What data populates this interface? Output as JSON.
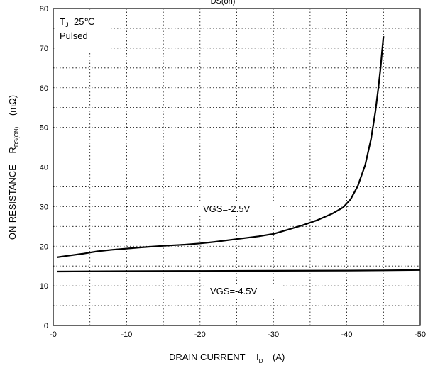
{
  "chart_data": {
    "type": "line",
    "title_fragment": "DS(on)",
    "xlabel": {
      "main": "DRAIN CURRENT",
      "symbol": "I",
      "subscript": "D",
      "unit": "(A)"
    },
    "ylabel": {
      "main": "ON-RESISTANCE",
      "symbol": "R",
      "subscript": "DS(ON)",
      "unit": "(mΩ)"
    },
    "xlim": [
      0,
      -50
    ],
    "ylim": [
      0,
      80
    ],
    "xticks": [
      0,
      -10,
      -20,
      -30,
      -40,
      -50
    ],
    "xtick_labels": [
      "-0",
      "-10",
      "-20",
      "-30",
      "-40",
      "-50"
    ],
    "yticks": [
      0,
      10,
      20,
      30,
      40,
      50,
      60,
      70,
      80
    ],
    "ytick_labels": [
      "0",
      "10",
      "20",
      "30",
      "40",
      "50",
      "60",
      "70",
      "80"
    ],
    "grid": true,
    "annotation_box": {
      "line1": "T",
      "line1_sub": "J",
      "line1_rest": "=25℃",
      "line2": "Pulsed"
    },
    "series": [
      {
        "name": "VGS=-2.5V",
        "x": [
          -0.5,
          -2,
          -4,
          -6,
          -8,
          -10,
          -12,
          -15,
          -18,
          -20,
          -22,
          -25,
          -28,
          -30,
          -32,
          -34,
          -36,
          -38,
          -39.5,
          -40.5,
          -41.5,
          -42.5,
          -43.3,
          -43.9,
          -44.3,
          -44.6,
          -44.8,
          -45
        ],
        "y": [
          17.2,
          17.6,
          18.1,
          18.7,
          19.1,
          19.4,
          19.7,
          20.1,
          20.4,
          20.7,
          21.1,
          21.8,
          22.5,
          23.1,
          24.2,
          25.3,
          26.6,
          28.2,
          29.8,
          31.8,
          35.2,
          40.5,
          47,
          54,
          60,
          65,
          69,
          73
        ]
      },
      {
        "name": "VGS=-4.5V",
        "x": [
          -0.5,
          -10,
          -20,
          -30,
          -40,
          -45,
          -50
        ],
        "y": [
          13.6,
          13.7,
          13.75,
          13.8,
          13.85,
          13.9,
          14.0
        ]
      }
    ]
  }
}
